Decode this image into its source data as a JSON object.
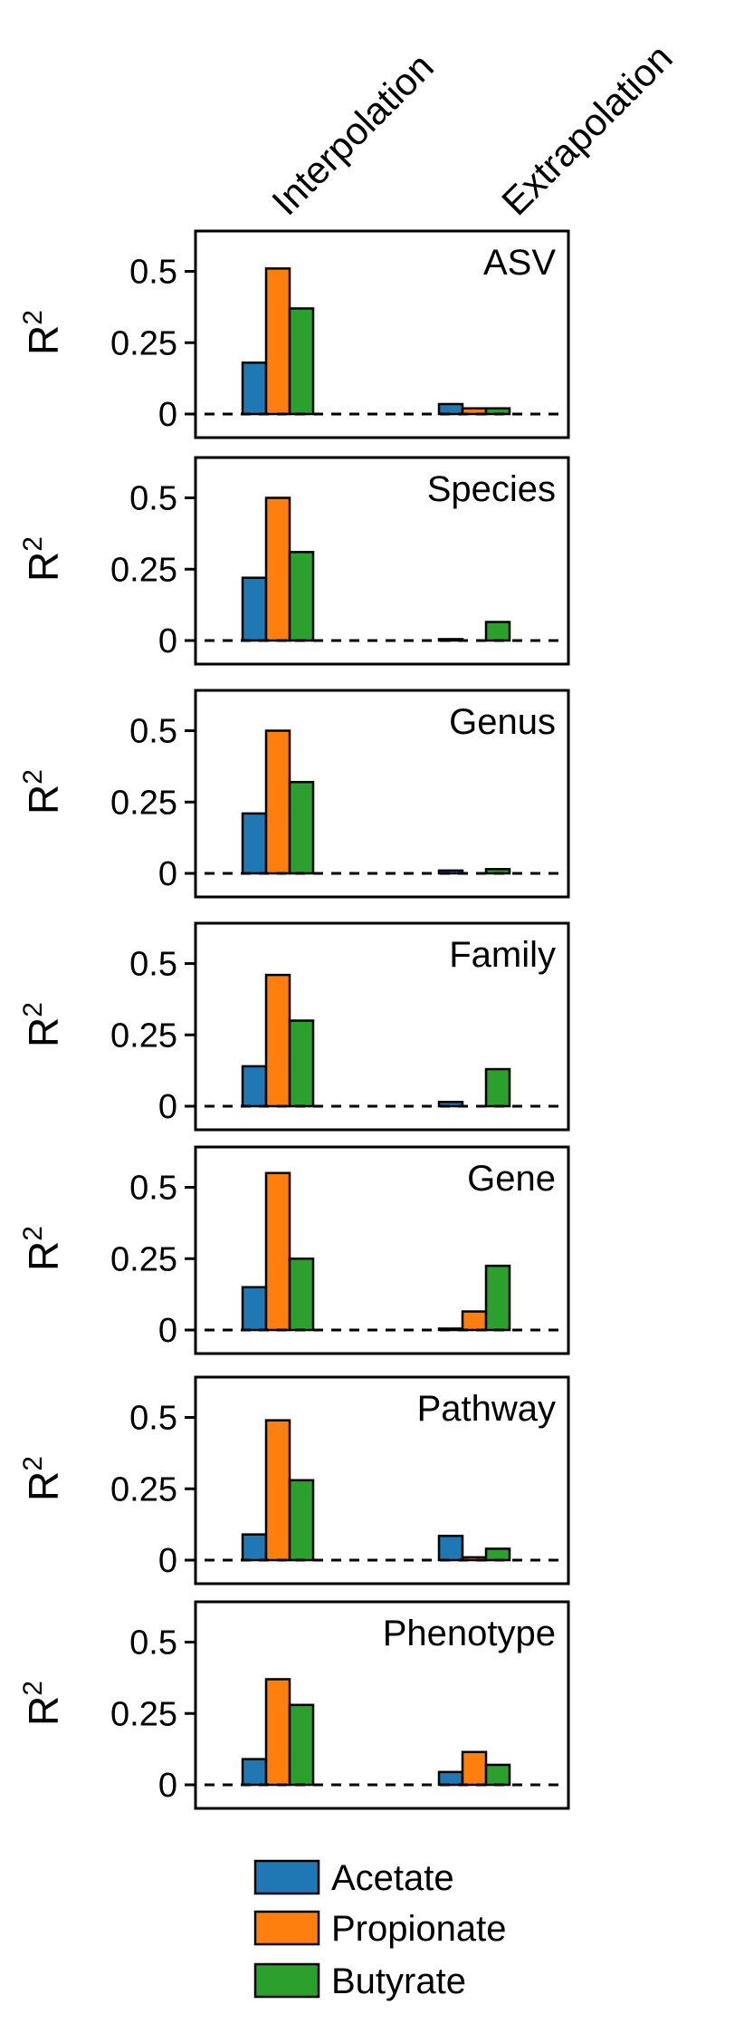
{
  "chart_data": {
    "type": "bar",
    "categories": [
      "Interpolation",
      "Extrapolation"
    ],
    "ylabel": "R",
    "ylabel_sup": "2",
    "ylim": [
      0,
      0.6
    ],
    "yticks": [
      0,
      0.25,
      0.5
    ],
    "ytick_labels": [
      "0",
      "0.25",
      "0.5"
    ],
    "reference_line": {
      "y": 0,
      "style": "dashed"
    },
    "legend": {
      "position": "bottom",
      "entries": [
        "Acetate",
        "Propionate",
        "Butyrate"
      ]
    },
    "colors": {
      "Acetate": "#1f77b4",
      "Propionate": "#ff7f0e",
      "Butyrate": "#2ca02c"
    },
    "series_names": [
      "Acetate",
      "Propionate",
      "Butyrate"
    ],
    "panels": [
      {
        "title": "ASV",
        "values": {
          "Acetate": [
            0.18,
            0.035
          ],
          "Propionate": [
            0.51,
            0.02
          ],
          "Butyrate": [
            0.37,
            0.02
          ]
        }
      },
      {
        "title": "Species",
        "values": {
          "Acetate": [
            0.22,
            0.005
          ],
          "Propionate": [
            0.5,
            0.0
          ],
          "Butyrate": [
            0.31,
            0.065
          ]
        }
      },
      {
        "title": "Genus",
        "values": {
          "Acetate": [
            0.21,
            0.01
          ],
          "Propionate": [
            0.5,
            0.0
          ],
          "Butyrate": [
            0.32,
            0.015
          ]
        }
      },
      {
        "title": "Family",
        "values": {
          "Acetate": [
            0.14,
            0.015
          ],
          "Propionate": [
            0.46,
            0.0
          ],
          "Butyrate": [
            0.3,
            0.13
          ]
        }
      },
      {
        "title": "Gene",
        "values": {
          "Acetate": [
            0.15,
            0.005
          ],
          "Propionate": [
            0.55,
            0.065
          ],
          "Butyrate": [
            0.25,
            0.225
          ]
        }
      },
      {
        "title": "Pathway",
        "values": {
          "Acetate": [
            0.09,
            0.085
          ],
          "Propionate": [
            0.49,
            0.01
          ],
          "Butyrate": [
            0.28,
            0.04
          ]
        }
      },
      {
        "title": "Phenotype",
        "values": {
          "Acetate": [
            0.09,
            0.045
          ],
          "Propionate": [
            0.37,
            0.115
          ],
          "Butyrate": [
            0.28,
            0.07
          ]
        }
      }
    ]
  }
}
